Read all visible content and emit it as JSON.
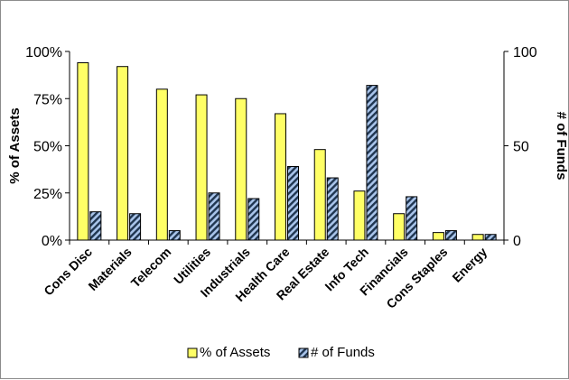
{
  "chart_data": {
    "type": "bar",
    "categories": [
      "Cons Disc",
      "Materials",
      "Telecom",
      "Utilities",
      "Industrials",
      "Health Care",
      "Real Estate",
      "Info Tech",
      "Financials",
      "Cons Staples",
      "Energy"
    ],
    "series": [
      {
        "name": "% of Assets",
        "axis": "left",
        "values": [
          94,
          92,
          80,
          77,
          75,
          67,
          48,
          26,
          14,
          4,
          3
        ],
        "color": "#ffff66"
      },
      {
        "name": "# of Funds",
        "axis": "right",
        "values": [
          15,
          14,
          5,
          25,
          22,
          39,
          33,
          82,
          23,
          5,
          3
        ],
        "color": "#6f8fbf",
        "pattern": "diagonal stripes"
      }
    ],
    "ylabel_left": "% of Assets",
    "ylabel_right": "# of Funds",
    "ylim_left": [
      0,
      100
    ],
    "ylim_right": [
      0,
      100
    ],
    "yticks_left": [
      "0%",
      "25%",
      "50%",
      "75%",
      "100%"
    ],
    "yticks_right": [
      "0",
      "50",
      "100"
    ],
    "legend": "bottom",
    "grid": false
  }
}
